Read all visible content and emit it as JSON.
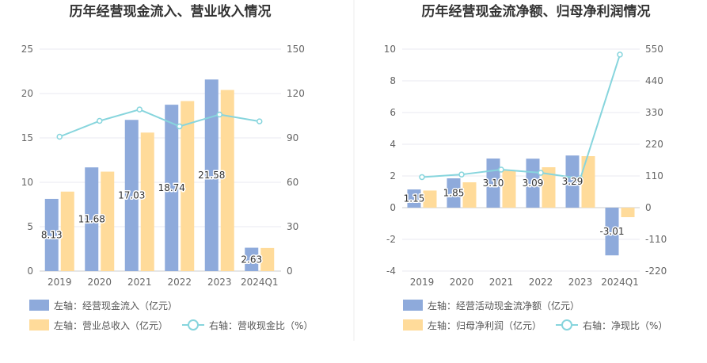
{
  "colors": {
    "bar_primary": "#8eaadb",
    "bar_secondary": "#ffdb9a",
    "line": "#87d5dd",
    "grid": "#e8e8f0",
    "divider": "#eeeeee"
  },
  "chart_data": [
    {
      "type": "bar",
      "title": "历年经营现金流入、营业收入情况",
      "categories": [
        "2019",
        "2020",
        "2021",
        "2022",
        "2023",
        "2024Q1"
      ],
      "left_axis": {
        "ticks": [
          "0",
          "5",
          "10",
          "15",
          "20",
          "25"
        ],
        "ylim": [
          0,
          25
        ]
      },
      "right_axis": {
        "ticks": [
          "0",
          "30",
          "60",
          "90",
          "120",
          "150"
        ],
        "ylim": [
          0,
          150
        ]
      },
      "grid": true,
      "legend_position": "bottom-left",
      "series": [
        {
          "name": "左轴：经营现金流入（亿元）",
          "kind": "bar",
          "axis": "left",
          "color": "#8eaadb",
          "values": [
            8.13,
            11.68,
            17.03,
            18.74,
            21.58,
            2.63
          ],
          "labels": [
            "8.13",
            "11.68",
            "17.03",
            "18.74",
            "21.58",
            "2.63"
          ]
        },
        {
          "name": "左轴：营业总收入（亿元）",
          "kind": "bar",
          "axis": "left",
          "color": "#ffdb9a",
          "values": [
            8.95,
            11.2,
            15.6,
            19.15,
            20.4,
            2.6
          ],
          "labels": []
        },
        {
          "name": "右轴：营收现金比（%）",
          "kind": "line",
          "axis": "right",
          "color": "#87d5dd",
          "values": [
            90.8,
            101.5,
            109.2,
            97.8,
            105.8,
            101.2
          ],
          "labels": []
        }
      ]
    },
    {
      "type": "bar",
      "title": "历年经营现金流净额、归母净利润情况",
      "categories": [
        "2019",
        "2020",
        "2021",
        "2022",
        "2023",
        "2024Q1"
      ],
      "left_axis": {
        "ticks": [
          "-4",
          "-2",
          "0",
          "2",
          "4",
          "6",
          "8",
          "10"
        ],
        "ylim": [
          -4,
          10
        ]
      },
      "right_axis": {
        "ticks": [
          "-220",
          "-110",
          "0",
          "110",
          "220",
          "330",
          "440",
          "550"
        ],
        "ylim": [
          -220,
          550
        ]
      },
      "grid": true,
      "legend_position": "bottom-left",
      "series": [
        {
          "name": "左轴：经营活动现金流净额（亿元）",
          "kind": "bar",
          "axis": "left",
          "color": "#8eaadb",
          "values": [
            1.15,
            1.85,
            3.1,
            3.09,
            3.29,
            -3.01
          ],
          "labels": [
            "1.15",
            "1.85",
            "3.10",
            "3.09",
            "3.29",
            "-3.01"
          ]
        },
        {
          "name": "左轴：归母净利润（亿元）",
          "kind": "bar",
          "axis": "left",
          "color": "#ffdb9a",
          "values": [
            1.08,
            1.6,
            2.35,
            2.55,
            3.25,
            -0.6
          ],
          "labels": []
        },
        {
          "name": "右轴：净现比（%）",
          "kind": "line",
          "axis": "right",
          "color": "#87d5dd",
          "values": [
            106,
            115,
            132,
            121,
            101,
            531
          ],
          "labels": []
        }
      ]
    }
  ]
}
